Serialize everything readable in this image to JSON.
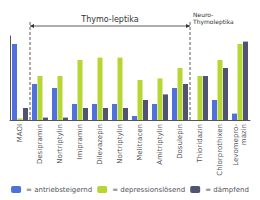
{
  "chart_data": {
    "type": "bar",
    "categories": [
      "MAOI",
      "Desipramin",
      "Nortriptylin",
      "Imipramin",
      "Dilevazepin",
      "Nortriptylin",
      "Melitracen",
      "Amitriptylin",
      "Dosulepin",
      "Thioridazin",
      "Chlorprothixen",
      "Levomepro-\nmazin"
    ],
    "series": [
      {
        "name": "= antriebsteigernd",
        "values": [
          9.5,
          4.5,
          4.0,
          2.0,
          2.0,
          2.0,
          0.5,
          2.0,
          4.0,
          0.0,
          2.5,
          0.8
        ]
      },
      {
        "name": "= depressionslösend",
        "values": [
          0.2,
          5.5,
          5.5,
          7.5,
          7.8,
          7.8,
          5.0,
          5.2,
          6.5,
          5.5,
          7.5,
          9.5
        ]
      },
      {
        "name": "= dämpfend",
        "values": [
          1.5,
          0.3,
          0.3,
          1.5,
          1.5,
          1.5,
          2.5,
          3.2,
          4.5,
          5.5,
          6.5,
          9.8
        ]
      }
    ],
    "annotations": [
      "Thymo-leptika",
      "Neuro-\nThymoleptika"
    ],
    "ylim": [
      0,
      10.5
    ],
    "tick_labels": "x",
    "grid": false,
    "legend": "bottom"
  }
}
